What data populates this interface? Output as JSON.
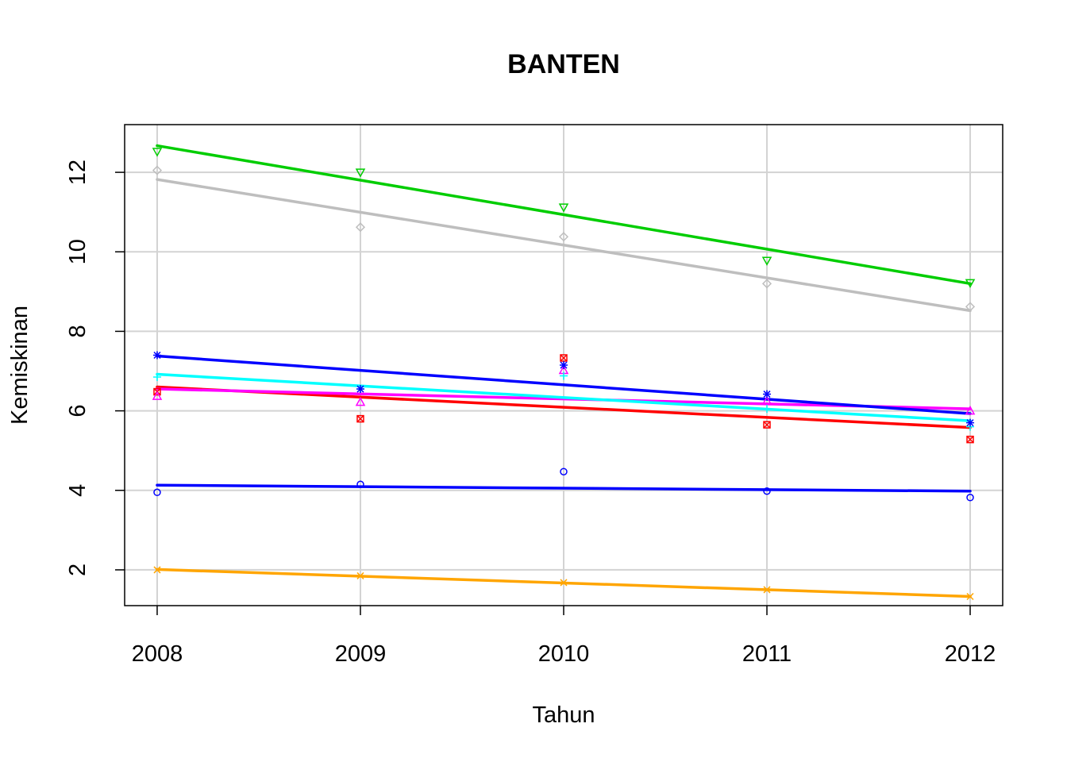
{
  "chart_data": {
    "type": "scatter",
    "title": "BANTEN",
    "xlabel": "Tahun",
    "ylabel": "Kemiskinan",
    "x": [
      2008,
      2009,
      2010,
      2011,
      2012
    ],
    "xticks": [
      "2008",
      "2009",
      "2010",
      "2011",
      "2012"
    ],
    "yticks": [
      "2",
      "4",
      "6",
      "8",
      "10",
      "12"
    ],
    "xlim": [
      2007.84,
      2012.16
    ],
    "ylim": [
      1.1,
      13.2
    ],
    "grid": true,
    "legend": "none",
    "series": [
      {
        "color": "#0000FF",
        "marker": "circle",
        "values": [
          3.95,
          4.15,
          4.47,
          3.98,
          3.82
        ],
        "fit": [
          4.13,
          3.98
        ]
      },
      {
        "color": "#FF0000",
        "marker": "square-x",
        "values": [
          6.48,
          5.8,
          7.33,
          5.65,
          5.28
        ],
        "fit": [
          6.6,
          5.58
        ]
      },
      {
        "color": "#FF00FF",
        "marker": "triangle-up",
        "values": [
          6.37,
          6.22,
          7.02,
          6.25,
          6.0
        ],
        "fit": [
          6.55,
          6.05
        ]
      },
      {
        "color": "#00FFFF",
        "marker": "plus",
        "values": [
          6.85,
          6.55,
          6.88,
          6.05,
          5.6
        ],
        "fit": [
          6.92,
          5.75
        ]
      },
      {
        "color": "#0000FF",
        "marker": "asterisk",
        "values": [
          7.4,
          6.55,
          7.15,
          6.42,
          5.7
        ],
        "fit": [
          7.38,
          5.93
        ]
      },
      {
        "color": "#FFA500",
        "marker": "x",
        "values": [
          2.0,
          1.85,
          1.68,
          1.5,
          1.33
        ],
        "fit": [
          2.01,
          1.33
        ]
      },
      {
        "color": "#BEBEBE",
        "marker": "diamond",
        "values": [
          12.05,
          10.62,
          10.38,
          9.2,
          8.62
        ],
        "fit": [
          11.82,
          8.52
        ]
      },
      {
        "color": "#00CD00",
        "marker": "triangle-down",
        "values": [
          12.52,
          12.0,
          11.12,
          9.78,
          9.22
        ],
        "fit": [
          12.67,
          9.2
        ]
      }
    ]
  }
}
